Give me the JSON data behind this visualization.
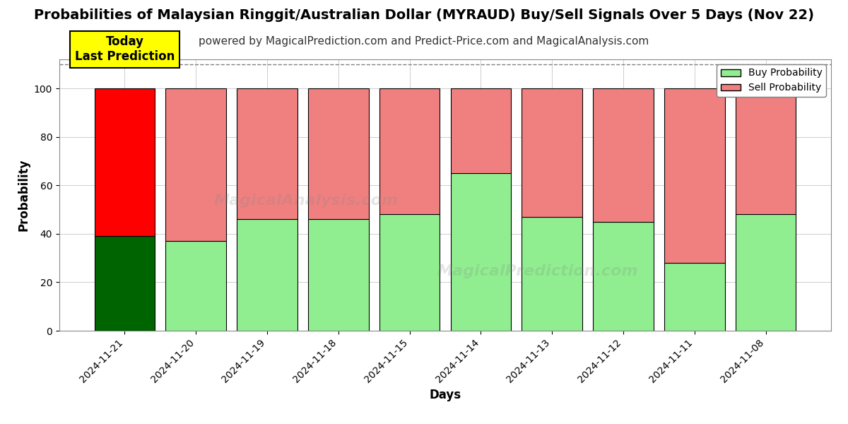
{
  "title": "Probabilities of Malaysian Ringgit/Australian Dollar (MYRAUD) Buy/Sell Signals Over 5 Days (Nov 22)",
  "subtitle": "powered by MagicalPrediction.com and Predict-Price.com and MagicalAnalysis.com",
  "xlabel": "Days",
  "ylabel": "Probability",
  "categories": [
    "2024-11-21",
    "2024-11-20",
    "2024-11-19",
    "2024-11-18",
    "2024-11-15",
    "2024-11-14",
    "2024-11-13",
    "2024-11-12",
    "2024-11-11",
    "2024-11-08"
  ],
  "buy_values": [
    39,
    37,
    46,
    46,
    48,
    65,
    47,
    45,
    28,
    48
  ],
  "sell_values": [
    61,
    63,
    54,
    54,
    52,
    35,
    53,
    55,
    72,
    52
  ],
  "buy_colors": [
    "#006400",
    "#90EE90",
    "#90EE90",
    "#90EE90",
    "#90EE90",
    "#90EE90",
    "#90EE90",
    "#90EE90",
    "#90EE90",
    "#90EE90"
  ],
  "sell_colors": [
    "#FF0000",
    "#F08080",
    "#F08080",
    "#F08080",
    "#F08080",
    "#F08080",
    "#F08080",
    "#F08080",
    "#F08080",
    "#F08080"
  ],
  "ylim": [
    0,
    112
  ],
  "yticks": [
    0,
    20,
    40,
    60,
    80,
    100
  ],
  "dashed_line_y": 110,
  "today_label": "Today\nLast Prediction",
  "legend_buy": "Buy Probability",
  "legend_sell": "Sell Probability",
  "background_color": "#ffffff",
  "grid_color": "#bbbbbb",
  "bar_edge_color": "#000000",
  "bar_linewidth": 0.8,
  "title_fontsize": 14,
  "subtitle_fontsize": 11,
  "axis_label_fontsize": 12,
  "tick_fontsize": 10,
  "bar_width": 0.85
}
